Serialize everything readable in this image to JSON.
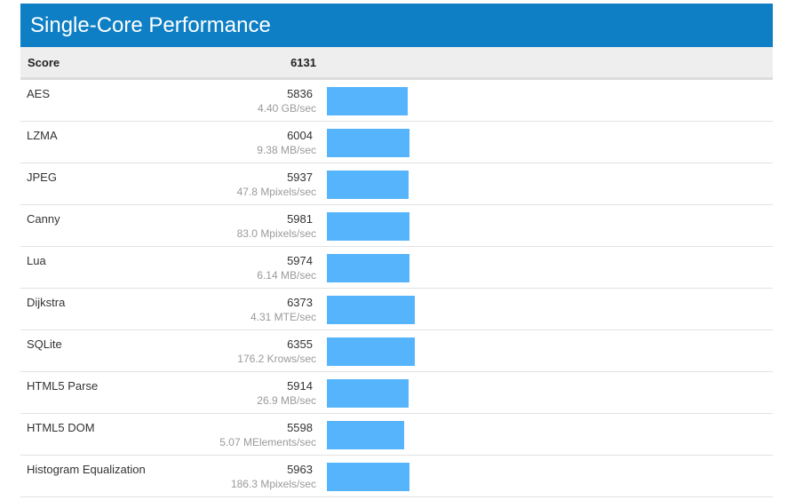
{
  "header": {
    "title": "Single-Core Performance"
  },
  "summary": {
    "label": "Score",
    "value": "6131"
  },
  "colors": {
    "header_bg": "#0e7fc4",
    "bar": "#56b4fc"
  },
  "chart_data": {
    "type": "bar",
    "title": "Single-Core Performance",
    "categories": [
      "AES",
      "LZMA",
      "JPEG",
      "Canny",
      "Lua",
      "Dijkstra",
      "SQLite",
      "HTML5 Parse",
      "HTML5 DOM",
      "Histogram Equalization"
    ],
    "values": [
      5836,
      6004,
      5937,
      5981,
      5974,
      6373,
      6355,
      5914,
      5598,
      5963
    ],
    "rates": [
      "4.40 GB/sec",
      "9.38 MB/sec",
      "47.8 Mpixels/sec",
      "83.0 Mpixels/sec",
      "6.14 MB/sec",
      "4.31 MTE/sec",
      "176.2 Krows/sec",
      "26.9 MB/sec",
      "5.07 MElements/sec",
      "186.3 Mpixels/sec"
    ],
    "orientation": "horizontal",
    "grid": false
  }
}
